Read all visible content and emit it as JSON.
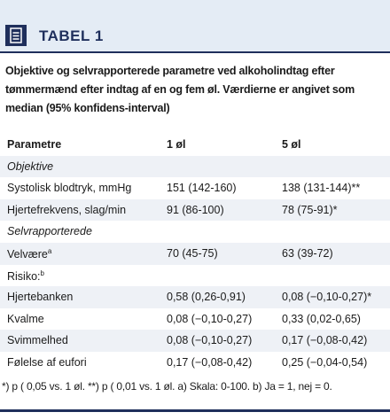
{
  "header": {
    "title": "TABEL 1"
  },
  "caption": "Objektive og selvrapporterede parametre ved alkoholindtag efter tømmermænd efter indtag af en og fem øl. Værdierne er angivet som median (95% konfidens-interval)",
  "table": {
    "columns": [
      "Parametre",
      "1 øl",
      "5 øl"
    ],
    "rows": [
      {
        "label": "Objektive",
        "section": true
      },
      {
        "label": "Systolisk blodtryk, mmHg",
        "values": [
          "151 (142-160)",
          "138 (131-144)**"
        ]
      },
      {
        "label": "Hjertefrekvens, slag/min",
        "values": [
          "91 (86-100)",
          "78 (75-91)*"
        ]
      },
      {
        "label": "Selvrapporterede",
        "section": true
      },
      {
        "label": "Velvære",
        "sup": "a",
        "values": [
          "70 (45-75)",
          "63 (39-72)"
        ]
      },
      {
        "label": "Risiko:",
        "sup": "b"
      },
      {
        "label": "Hjertebanken",
        "values": [
          "0,58 (0,26-0,91)",
          "0,08 (−0,10-0,27)*"
        ]
      },
      {
        "label": "Kvalme",
        "values": [
          "0,08 (−0,10-0,27)",
          "0,33 (0,02-0,65)"
        ]
      },
      {
        "label": "Svimmelhed",
        "values": [
          "0,08 (−0,10-0,27)",
          "0,17 (−0,08-0,42)"
        ]
      },
      {
        "label": "Følelse af eufori",
        "values": [
          "0,17 (−0,08-0,42)",
          "0,25 (−0,04-0,54)"
        ]
      }
    ],
    "footnote": "*) p ( 0,05 vs. 1 øl. **) p ( 0,01 vs. 1 øl. a) Skala: 0-100. b) Ja = 1, nej = 0."
  }
}
